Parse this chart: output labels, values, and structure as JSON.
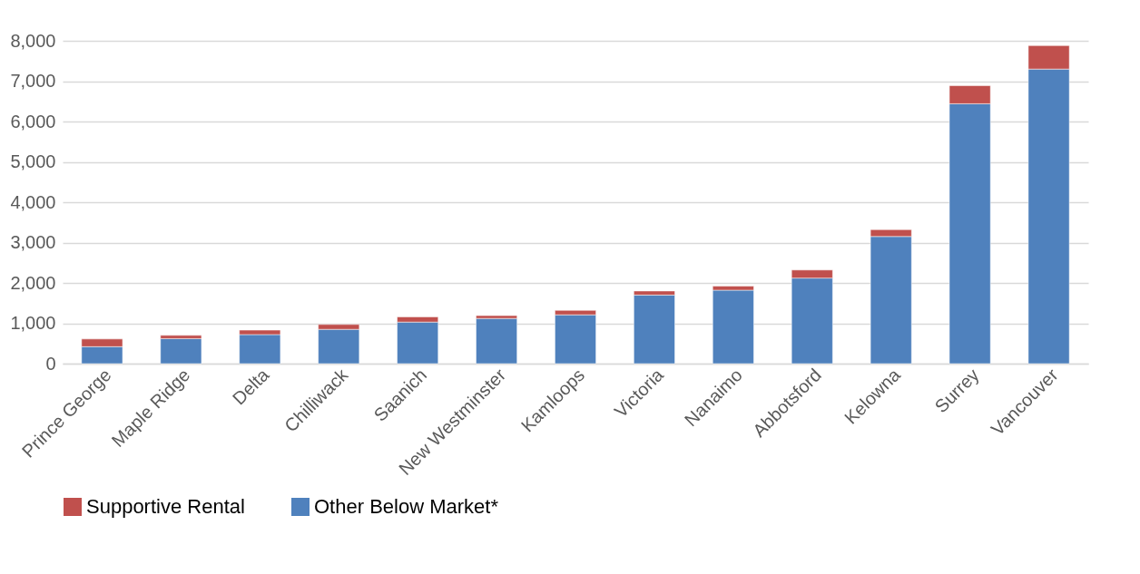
{
  "chart_data": {
    "type": "bar",
    "stacked": true,
    "categories": [
      "Prince George",
      "Maple Ridge",
      "Delta",
      "Chilliwack",
      "Saanich",
      "New Westminster",
      "Kamloops",
      "Victoria",
      "Nanaimo",
      "Abbotsford",
      "Kelowna",
      "Surrey",
      "Vancouver"
    ],
    "series": [
      {
        "name": "Other Below Market*",
        "color": "#4f81bd",
        "values": [
          420,
          620,
          720,
          850,
          1030,
          1120,
          1210,
          1700,
          1820,
          2120,
          3150,
          6440,
          7300
        ]
      },
      {
        "name": "Supportive Rental",
        "color": "#c0504d",
        "values": [
          190,
          80,
          110,
          120,
          130,
          70,
          110,
          100,
          100,
          200,
          170,
          450,
          580
        ]
      }
    ],
    "ylim": [
      0,
      8000
    ],
    "yticks": [
      {
        "value": 0,
        "label": "0"
      },
      {
        "value": 1000,
        "label": "1,000"
      },
      {
        "value": 2000,
        "label": "2,000"
      },
      {
        "value": 3000,
        "label": "3,000"
      },
      {
        "value": 4000,
        "label": "4,000"
      },
      {
        "value": 5000,
        "label": "5,000"
      },
      {
        "value": 6000,
        "label": "6,000"
      },
      {
        "value": 7000,
        "label": "7,000"
      },
      {
        "value": 8000,
        "label": "8,000"
      }
    ],
    "grid": "y",
    "legend": "bottom"
  }
}
